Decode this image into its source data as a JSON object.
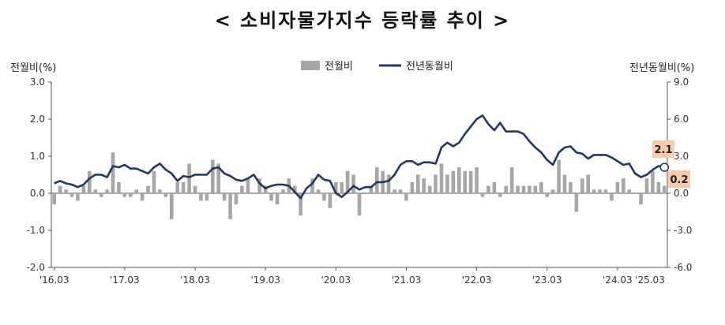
{
  "title": "< 소비자물가지수 등락률 추이 >",
  "chart_data": {
    "type": "bar+line",
    "x_ticks": [
      "'16.03",
      "'17.03",
      "'18.03",
      "'19.03",
      "'20.03",
      "'21.03",
      "'22.03",
      "'23.03",
      "'24.03",
      "'25.03"
    ],
    "x_start": "2016.03",
    "x_end": "2025.03",
    "left_axis": {
      "label": "전월비(%)",
      "ylim": [
        -2.0,
        3.0
      ],
      "ticks": [
        "3.0",
        "2.0",
        "1.0",
        "0.0",
        "-1.0",
        "-2.0"
      ]
    },
    "right_axis": {
      "label": "전년동월비(%)",
      "ylim": [
        -6.0,
        9.0
      ],
      "ticks": [
        "9.0",
        "6.0",
        "3.0",
        "0.0",
        "-3.0",
        "-6.0"
      ]
    },
    "legend": [
      "전월비",
      "전년동월비"
    ],
    "legend_position": "top-center",
    "colors": {
      "bars": "#a6a6a6",
      "line": "#1f3864",
      "callout": "#f8cbad"
    },
    "series": [
      {
        "name": "전월비",
        "kind": "bar",
        "axis": "left",
        "values": [
          -0.3,
          0.2,
          0.1,
          -0.1,
          -0.2,
          0.2,
          0.6,
          0.1,
          -0.1,
          0.1,
          1.1,
          0.3,
          -0.1,
          -0.1,
          0.1,
          -0.2,
          0.2,
          0.6,
          0.1,
          -0.1,
          -0.7,
          0.3,
          0.3,
          0.8,
          0.2,
          -0.2,
          -0.2,
          0.9,
          0.8,
          -0.2,
          -0.7,
          -0.3,
          0.2,
          0.4,
          0.0,
          0.4,
          0.2,
          -0.2,
          -0.3,
          0.1,
          0.4,
          0.2,
          -0.6,
          0.0,
          0.4,
          0.1,
          -0.2,
          -0.4,
          0.3,
          0.3,
          0.6,
          0.5,
          -0.6,
          0.0,
          0.2,
          0.7,
          0.6,
          0.5,
          0.1,
          0.1,
          -0.2,
          0.3,
          0.5,
          0.4,
          0.2,
          0.5,
          0.8,
          0.5,
          0.6,
          0.7,
          0.6,
          0.6,
          0.7,
          -0.1,
          0.2,
          0.3,
          -0.1,
          0.2,
          0.7,
          0.2,
          0.2,
          0.2,
          0.2,
          0.3,
          -0.1,
          0.1,
          0.9,
          0.5,
          0.3,
          -0.5,
          0.4,
          0.5,
          0.1,
          0.1,
          0.1,
          -0.2,
          0.3,
          0.4,
          0.1,
          0.0,
          -0.3,
          0.4,
          0.6,
          0.3,
          0.2
        ]
      },
      {
        "name": "전년동월비",
        "kind": "line",
        "axis": "right",
        "values": [
          0.8,
          1.0,
          0.8,
          0.7,
          0.5,
          0.7,
          1.2,
          1.5,
          1.5,
          1.3,
          2.2,
          2.1,
          2.3,
          2.0,
          2.0,
          1.8,
          1.6,
          2.1,
          2.4,
          1.9,
          1.6,
          1.0,
          1.4,
          1.3,
          1.5,
          1.5,
          1.5,
          2.0,
          2.1,
          1.6,
          1.4,
          1.1,
          1.0,
          1.2,
          1.5,
          0.8,
          0.4,
          0.6,
          0.7,
          0.7,
          0.6,
          0.1,
          -0.4,
          0.4,
          0.8,
          1.5,
          1.1,
          1.0,
          0.0,
          -0.3,
          0.1,
          0.6,
          0.3,
          0.5,
          0.5,
          0.9,
          0.9,
          1.0,
          1.5,
          2.3,
          2.6,
          2.6,
          2.3,
          2.5,
          2.5,
          2.4,
          3.7,
          4.1,
          3.8,
          4.1,
          4.8,
          5.4,
          6.0,
          6.3,
          5.6,
          5.1,
          5.7,
          5.0,
          5.0,
          5.0,
          4.8,
          4.2,
          3.7,
          3.3,
          2.7,
          2.3,
          3.3,
          3.7,
          3.8,
          3.3,
          3.2,
          2.8,
          3.1,
          3.1,
          3.1,
          2.9,
          2.6,
          2.3,
          2.4,
          1.6,
          1.3,
          1.5,
          1.9,
          2.2,
          2.1
        ]
      }
    ],
    "annotations": [
      {
        "label": "2.1",
        "series": "전년동월비",
        "x": "2025.03"
      },
      {
        "label": "0.2",
        "series": "전월비",
        "x": "2025.03"
      }
    ]
  }
}
